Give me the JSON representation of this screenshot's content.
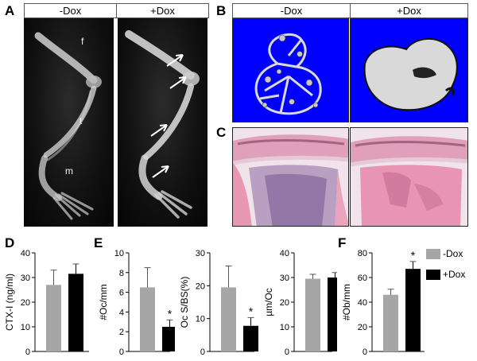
{
  "panels": {
    "a": {
      "letter": "A",
      "header_left": "-Dox",
      "header_right": "+Dox",
      "bone_labels": {
        "femur": "f",
        "tibia": "t",
        "metatarsal": "m"
      }
    },
    "b": {
      "letter": "B",
      "header_left": "-Dox",
      "header_right": "+Dox"
    },
    "c": {
      "letter": "C"
    },
    "d": {
      "letter": "D"
    },
    "e": {
      "letter": "E"
    },
    "f": {
      "letter": "F"
    }
  },
  "colors": {
    "control": "#a6a6a6",
    "dox": "#000000",
    "microct_background": "#0000ff"
  },
  "legend": {
    "items": [
      {
        "label": "-Dox",
        "color": "#a6a6a6"
      },
      {
        "label": "+Dox",
        "color": "#000000"
      }
    ]
  },
  "chart_data": [
    {
      "id": "D",
      "type": "bar",
      "categories": [
        "-Dox",
        "+Dox"
      ],
      "values": [
        27,
        31.5
      ],
      "errors": [
        6,
        4
      ],
      "ylabel": "CTX-I (ng/ml)",
      "ylim": [
        0,
        40
      ],
      "yticks": [
        0,
        10,
        20,
        30,
        40
      ],
      "significance": [
        "",
        ""
      ]
    },
    {
      "id": "E1",
      "type": "bar",
      "categories": [
        "-Dox",
        "+Dox"
      ],
      "values": [
        6.5,
        2.5
      ],
      "errors": [
        2,
        0.7
      ],
      "ylabel": "#Oc/mm",
      "ylim": [
        0,
        10
      ],
      "yticks": [
        0,
        2,
        4,
        6,
        8,
        10
      ],
      "significance": [
        "",
        "*"
      ]
    },
    {
      "id": "E2",
      "type": "bar",
      "categories": [
        "-Dox",
        "+Dox"
      ],
      "values": [
        19.5,
        7.8
      ],
      "errors": [
        6.5,
        2.5
      ],
      "ylabel": "Oc S/BS(%)",
      "ylim": [
        0,
        30
      ],
      "yticks": [
        0,
        10,
        20,
        30
      ],
      "significance": [
        "",
        "*"
      ]
    },
    {
      "id": "E3",
      "type": "bar",
      "categories": [
        "-Dox",
        "+Dox"
      ],
      "values": [
        29.5,
        30
      ],
      "errors": [
        1.8,
        2
      ],
      "ylabel": "µm/Oc",
      "ylim": [
        0,
        40
      ],
      "yticks": [
        0,
        10,
        20,
        30,
        40
      ],
      "significance": [
        "",
        ""
      ]
    },
    {
      "id": "F",
      "type": "bar",
      "categories": [
        "-Dox",
        "+Dox"
      ],
      "values": [
        46,
        67
      ],
      "errors": [
        4.5,
        6
      ],
      "ylabel": "#Ob/mm",
      "ylim": [
        0,
        80
      ],
      "yticks": [
        0,
        20,
        40,
        60,
        80
      ],
      "significance": [
        "",
        "*"
      ]
    }
  ]
}
